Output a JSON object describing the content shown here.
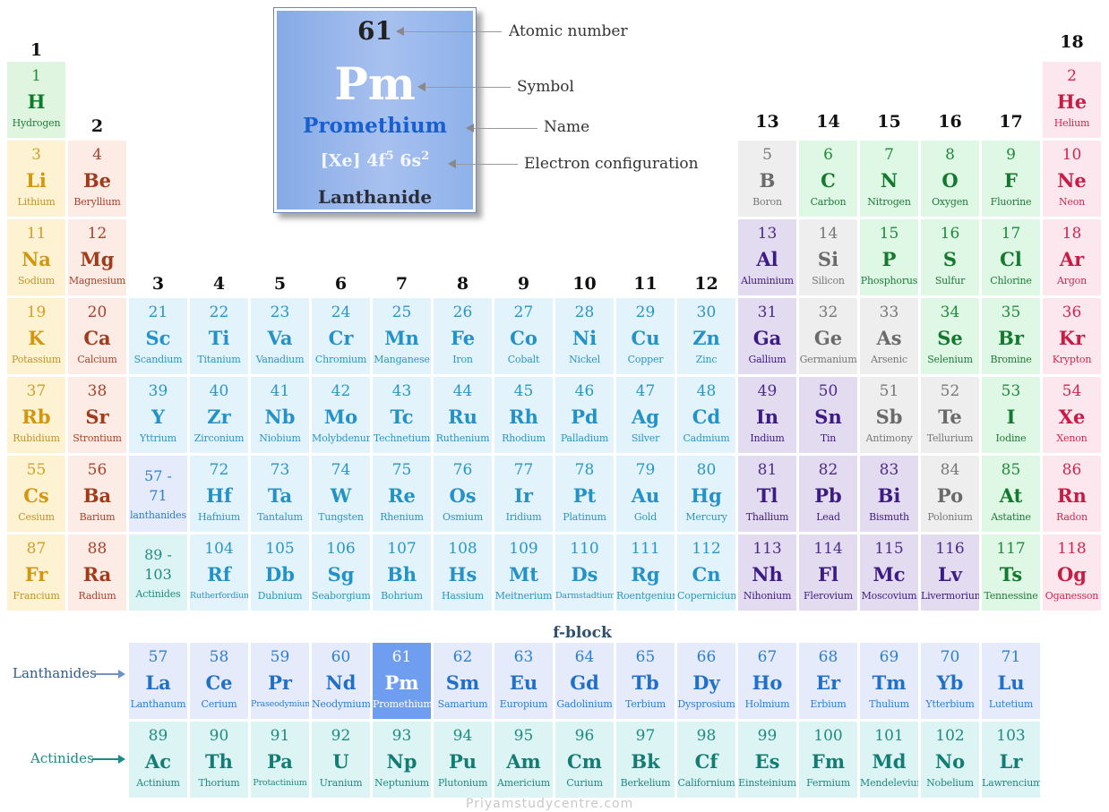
{
  "colors": {
    "hydrogen": "#e0f5df",
    "alkali": "#fdf3d3",
    "alkaline": "#fdebe5",
    "transition": "#e2f3fb",
    "post_transition": "#e3dbef",
    "metalloid": "#eeeeee",
    "nonmetal": "#dff7e5",
    "noble": "#fde7ee",
    "lanthanide": "#e6ebfc",
    "actinide": "#dcf4f3",
    "highlight": "#6f9df0"
  },
  "group_headers": [
    "1",
    "2",
    "3",
    "4",
    "5",
    "6",
    "7",
    "8",
    "9",
    "10",
    "11",
    "12",
    "13",
    "14",
    "15",
    "16",
    "17",
    "18"
  ],
  "legend": {
    "number": "61",
    "symbol": "Pm",
    "name": "Promethium",
    "config_base": "[Xe] 4f",
    "config_sup1": "5",
    "config_mid": " 6s",
    "config_sup2": "2",
    "category": "Lanthanide",
    "callouts": {
      "number": "Atomic number",
      "symbol": "Symbol",
      "name": "Name",
      "config": "Electron configuration"
    }
  },
  "labels": {
    "fblock": "f-block",
    "lanthanides": "Lanthanides",
    "actinides": "Actinides",
    "watermark": "Priyamstudycentre.com"
  },
  "elements": [
    {
      "n": "1",
      "s": "H",
      "name": "Hydrogen",
      "g": 1,
      "p": 1,
      "c": "hydrogen"
    },
    {
      "n": "2",
      "s": "He",
      "name": "Helium",
      "g": 18,
      "p": 1,
      "c": "noble"
    },
    {
      "n": "3",
      "s": "Li",
      "name": "Lithium",
      "g": 1,
      "p": 2,
      "c": "alkali"
    },
    {
      "n": "4",
      "s": "Be",
      "name": "Beryllium",
      "g": 2,
      "p": 2,
      "c": "alkaline"
    },
    {
      "n": "5",
      "s": "B",
      "name": "Boron",
      "g": 13,
      "p": 2,
      "c": "metalloid"
    },
    {
      "n": "6",
      "s": "C",
      "name": "Carbon",
      "g": 14,
      "p": 2,
      "c": "nonmetal"
    },
    {
      "n": "7",
      "s": "N",
      "name": "Nitrogen",
      "g": 15,
      "p": 2,
      "c": "nonmetal"
    },
    {
      "n": "8",
      "s": "O",
      "name": "Oxygen",
      "g": 16,
      "p": 2,
      "c": "nonmetal"
    },
    {
      "n": "9",
      "s": "F",
      "name": "Fluorine",
      "g": 17,
      "p": 2,
      "c": "nonmetal"
    },
    {
      "n": "10",
      "s": "Ne",
      "name": "Neon",
      "g": 18,
      "p": 2,
      "c": "noble"
    },
    {
      "n": "11",
      "s": "Na",
      "name": "Sodium",
      "g": 1,
      "p": 3,
      "c": "alkali"
    },
    {
      "n": "12",
      "s": "Mg",
      "name": "Magnesium",
      "g": 2,
      "p": 3,
      "c": "alkaline"
    },
    {
      "n": "13",
      "s": "Al",
      "name": "Aluminium",
      "g": 13,
      "p": 3,
      "c": "post_transition"
    },
    {
      "n": "14",
      "s": "Si",
      "name": "Silicon",
      "g": 14,
      "p": 3,
      "c": "metalloid"
    },
    {
      "n": "15",
      "s": "P",
      "name": "Phosphorus",
      "g": 15,
      "p": 3,
      "c": "nonmetal"
    },
    {
      "n": "16",
      "s": "S",
      "name": "Sulfur",
      "g": 16,
      "p": 3,
      "c": "nonmetal"
    },
    {
      "n": "17",
      "s": "Cl",
      "name": "Chlorine",
      "g": 17,
      "p": 3,
      "c": "nonmetal"
    },
    {
      "n": "18",
      "s": "Ar",
      "name": "Argon",
      "g": 18,
      "p": 3,
      "c": "noble"
    },
    {
      "n": "19",
      "s": "K",
      "name": "Potassium",
      "g": 1,
      "p": 4,
      "c": "alkali"
    },
    {
      "n": "20",
      "s": "Ca",
      "name": "Calcium",
      "g": 2,
      "p": 4,
      "c": "alkaline"
    },
    {
      "n": "21",
      "s": "Sc",
      "name": "Scandium",
      "g": 3,
      "p": 4,
      "c": "transition"
    },
    {
      "n": "22",
      "s": "Ti",
      "name": "Titanium",
      "g": 4,
      "p": 4,
      "c": "transition"
    },
    {
      "n": "23",
      "s": "Va",
      "name": "Vanadium",
      "g": 5,
      "p": 4,
      "c": "transition"
    },
    {
      "n": "24",
      "s": "Cr",
      "name": "Chromium",
      "g": 6,
      "p": 4,
      "c": "transition"
    },
    {
      "n": "25",
      "s": "Mn",
      "name": "Manganese",
      "g": 7,
      "p": 4,
      "c": "transition"
    },
    {
      "n": "26",
      "s": "Fe",
      "name": "Iron",
      "g": 8,
      "p": 4,
      "c": "transition"
    },
    {
      "n": "27",
      "s": "Co",
      "name": "Cobalt",
      "g": 9,
      "p": 4,
      "c": "transition"
    },
    {
      "n": "28",
      "s": "Ni",
      "name": "Nickel",
      "g": 10,
      "p": 4,
      "c": "transition"
    },
    {
      "n": "29",
      "s": "Cu",
      "name": "Copper",
      "g": 11,
      "p": 4,
      "c": "transition"
    },
    {
      "n": "30",
      "s": "Zn",
      "name": "Zinc",
      "g": 12,
      "p": 4,
      "c": "transition"
    },
    {
      "n": "31",
      "s": "Ga",
      "name": "Gallium",
      "g": 13,
      "p": 4,
      "c": "post_transition"
    },
    {
      "n": "32",
      "s": "Ge",
      "name": "Germanium",
      "g": 14,
      "p": 4,
      "c": "metalloid"
    },
    {
      "n": "33",
      "s": "As",
      "name": "Arsenic",
      "g": 15,
      "p": 4,
      "c": "metalloid"
    },
    {
      "n": "34",
      "s": "Se",
      "name": "Selenium",
      "g": 16,
      "p": 4,
      "c": "nonmetal"
    },
    {
      "n": "35",
      "s": "Br",
      "name": "Bromine",
      "g": 17,
      "p": 4,
      "c": "nonmetal"
    },
    {
      "n": "36",
      "s": "Kr",
      "name": "Krypton",
      "g": 18,
      "p": 4,
      "c": "noble"
    },
    {
      "n": "37",
      "s": "Rb",
      "name": "Rubidium",
      "g": 1,
      "p": 5,
      "c": "alkali"
    },
    {
      "n": "38",
      "s": "Sr",
      "name": "Strontium",
      "g": 2,
      "p": 5,
      "c": "alkaline"
    },
    {
      "n": "39",
      "s": "Y",
      "name": "Yttrium",
      "g": 3,
      "p": 5,
      "c": "transition"
    },
    {
      "n": "40",
      "s": "Zr",
      "name": "Zirconium",
      "g": 4,
      "p": 5,
      "c": "transition"
    },
    {
      "n": "41",
      "s": "Nb",
      "name": "Niobium",
      "g": 5,
      "p": 5,
      "c": "transition"
    },
    {
      "n": "42",
      "s": "Mo",
      "name": "Molybdenum",
      "g": 6,
      "p": 5,
      "c": "transition"
    },
    {
      "n": "43",
      "s": "Tc",
      "name": "Technetium",
      "g": 7,
      "p": 5,
      "c": "transition"
    },
    {
      "n": "44",
      "s": "Ru",
      "name": "Ruthenium",
      "g": 8,
      "p": 5,
      "c": "transition"
    },
    {
      "n": "45",
      "s": "Rh",
      "name": "Rhodium",
      "g": 9,
      "p": 5,
      "c": "transition"
    },
    {
      "n": "46",
      "s": "Pd",
      "name": "Palladium",
      "g": 10,
      "p": 5,
      "c": "transition"
    },
    {
      "n": "47",
      "s": "Ag",
      "name": "Silver",
      "g": 11,
      "p": 5,
      "c": "transition"
    },
    {
      "n": "48",
      "s": "Cd",
      "name": "Cadmium",
      "g": 12,
      "p": 5,
      "c": "transition"
    },
    {
      "n": "49",
      "s": "In",
      "name": "Indium",
      "g": 13,
      "p": 5,
      "c": "post_transition"
    },
    {
      "n": "50",
      "s": "Sn",
      "name": "Tin",
      "g": 14,
      "p": 5,
      "c": "post_transition"
    },
    {
      "n": "51",
      "s": "Sb",
      "name": "Antimony",
      "g": 15,
      "p": 5,
      "c": "metalloid"
    },
    {
      "n": "52",
      "s": "Te",
      "name": "Tellurium",
      "g": 16,
      "p": 5,
      "c": "metalloid"
    },
    {
      "n": "53",
      "s": "I",
      "name": "Iodine",
      "g": 17,
      "p": 5,
      "c": "nonmetal"
    },
    {
      "n": "54",
      "s": "Xe",
      "name": "Xenon",
      "g": 18,
      "p": 5,
      "c": "noble"
    },
    {
      "n": "55",
      "s": "Cs",
      "name": "Cesium",
      "g": 1,
      "p": 6,
      "c": "alkali"
    },
    {
      "n": "56",
      "s": "Ba",
      "name": "Barium",
      "g": 2,
      "p": 6,
      "c": "alkaline"
    },
    {
      "n": "57 -\n71",
      "s": "",
      "name": "lanthanides",
      "g": 3,
      "p": 6,
      "c": "lanthanide",
      "range": true
    },
    {
      "n": "72",
      "s": "Hf",
      "name": "Hafnium",
      "g": 4,
      "p": 6,
      "c": "transition"
    },
    {
      "n": "73",
      "s": "Ta",
      "name": "Tantalum",
      "g": 5,
      "p": 6,
      "c": "transition"
    },
    {
      "n": "74",
      "s": "W",
      "name": "Tungsten",
      "g": 6,
      "p": 6,
      "c": "transition"
    },
    {
      "n": "75",
      "s": "Re",
      "name": "Rhenium",
      "g": 7,
      "p": 6,
      "c": "transition"
    },
    {
      "n": "76",
      "s": "Os",
      "name": "Osmium",
      "g": 8,
      "p": 6,
      "c": "transition"
    },
    {
      "n": "77",
      "s": "Ir",
      "name": "Iridium",
      "g": 9,
      "p": 6,
      "c": "transition"
    },
    {
      "n": "78",
      "s": "Pt",
      "name": "Platinum",
      "g": 10,
      "p": 6,
      "c": "transition"
    },
    {
      "n": "79",
      "s": "Au",
      "name": "Gold",
      "g": 11,
      "p": 6,
      "c": "transition"
    },
    {
      "n": "80",
      "s": "Hg",
      "name": "Mercury",
      "g": 12,
      "p": 6,
      "c": "transition"
    },
    {
      "n": "81",
      "s": "Tl",
      "name": "Thallium",
      "g": 13,
      "p": 6,
      "c": "post_transition"
    },
    {
      "n": "82",
      "s": "Pb",
      "name": "Lead",
      "g": 14,
      "p": 6,
      "c": "post_transition"
    },
    {
      "n": "83",
      "s": "Bi",
      "name": "Bismuth",
      "g": 15,
      "p": 6,
      "c": "post_transition"
    },
    {
      "n": "84",
      "s": "Po",
      "name": "Polonium",
      "g": 16,
      "p": 6,
      "c": "metalloid"
    },
    {
      "n": "85",
      "s": "At",
      "name": "Astatine",
      "g": 17,
      "p": 6,
      "c": "nonmetal"
    },
    {
      "n": "86",
      "s": "Rn",
      "name": "Radon",
      "g": 18,
      "p": 6,
      "c": "noble"
    },
    {
      "n": "87",
      "s": "Fr",
      "name": "Francium",
      "g": 1,
      "p": 7,
      "c": "alkali"
    },
    {
      "n": "88",
      "s": "Ra",
      "name": "Radium",
      "g": 2,
      "p": 7,
      "c": "alkaline"
    },
    {
      "n": "89 -\n103",
      "s": "",
      "name": "Actinides",
      "g": 3,
      "p": 7,
      "c": "actinide",
      "range": true
    },
    {
      "n": "104",
      "s": "Rf",
      "name": "Rutherfordium",
      "g": 4,
      "p": 7,
      "c": "transition"
    },
    {
      "n": "105",
      "s": "Db",
      "name": "Dubnium",
      "g": 5,
      "p": 7,
      "c": "transition"
    },
    {
      "n": "106",
      "s": "Sg",
      "name": "Seaborgium",
      "g": 6,
      "p": 7,
      "c": "transition"
    },
    {
      "n": "107",
      "s": "Bh",
      "name": "Bohrium",
      "g": 7,
      "p": 7,
      "c": "transition"
    },
    {
      "n": "108",
      "s": "Hs",
      "name": "Hassium",
      "g": 8,
      "p": 7,
      "c": "transition"
    },
    {
      "n": "109",
      "s": "Mt",
      "name": "Meitnerium",
      "g": 9,
      "p": 7,
      "c": "transition"
    },
    {
      "n": "110",
      "s": "Ds",
      "name": "Darmstadtium",
      "g": 10,
      "p": 7,
      "c": "transition"
    },
    {
      "n": "111",
      "s": "Rg",
      "name": "Roentgenium",
      "g": 11,
      "p": 7,
      "c": "transition"
    },
    {
      "n": "112",
      "s": "Cn",
      "name": "Copernicium",
      "g": 12,
      "p": 7,
      "c": "transition"
    },
    {
      "n": "113",
      "s": "Nh",
      "name": "Nihonium",
      "g": 13,
      "p": 7,
      "c": "post_transition"
    },
    {
      "n": "114",
      "s": "Fl",
      "name": "Flerovium",
      "g": 14,
      "p": 7,
      "c": "post_transition"
    },
    {
      "n": "115",
      "s": "Mc",
      "name": "Moscovium",
      "g": 15,
      "p": 7,
      "c": "post_transition"
    },
    {
      "n": "116",
      "s": "Lv",
      "name": "Livermorium",
      "g": 16,
      "p": 7,
      "c": "post_transition"
    },
    {
      "n": "117",
      "s": "Ts",
      "name": "Tennessine",
      "g": 17,
      "p": 7,
      "c": "nonmetal"
    },
    {
      "n": "118",
      "s": "Og",
      "name": "Oganesson",
      "g": 18,
      "p": 7,
      "c": "noble"
    }
  ],
  "lanthanides": [
    {
      "n": "57",
      "s": "La",
      "name": "Lanthanum"
    },
    {
      "n": "58",
      "s": "Ce",
      "name": "Cerium"
    },
    {
      "n": "59",
      "s": "Pr",
      "name": "Praseodymium"
    },
    {
      "n": "60",
      "s": "Nd",
      "name": "Neodymium"
    },
    {
      "n": "61",
      "s": "Pm",
      "name": "Promethium",
      "hl": true
    },
    {
      "n": "62",
      "s": "Sm",
      "name": "Samarium"
    },
    {
      "n": "63",
      "s": "Eu",
      "name": "Europium"
    },
    {
      "n": "64",
      "s": "Gd",
      "name": "Gadolinium"
    },
    {
      "n": "65",
      "s": "Tb",
      "name": "Terbium"
    },
    {
      "n": "66",
      "s": "Dy",
      "name": "Dysprosium"
    },
    {
      "n": "67",
      "s": "Ho",
      "name": "Holmium"
    },
    {
      "n": "68",
      "s": "Er",
      "name": "Erbium"
    },
    {
      "n": "69",
      "s": "Tm",
      "name": "Thulium"
    },
    {
      "n": "70",
      "s": "Yb",
      "name": "Ytterbium"
    },
    {
      "n": "71",
      "s": "Lu",
      "name": "Lutetium"
    }
  ],
  "actinides": [
    {
      "n": "89",
      "s": "Ac",
      "name": "Actinium"
    },
    {
      "n": "90",
      "s": "Th",
      "name": "Thorium"
    },
    {
      "n": "91",
      "s": "Pa",
      "name": "Protactinium"
    },
    {
      "n": "92",
      "s": "U",
      "name": "Uranium"
    },
    {
      "n": "93",
      "s": "Np",
      "name": "Neptunium"
    },
    {
      "n": "94",
      "s": "Pu",
      "name": "Plutonium"
    },
    {
      "n": "95",
      "s": "Am",
      "name": "Americium"
    },
    {
      "n": "96",
      "s": "Cm",
      "name": "Curium"
    },
    {
      "n": "97",
      "s": "Bk",
      "name": "Berkelium"
    },
    {
      "n": "98",
      "s": "Cf",
      "name": "Californium"
    },
    {
      "n": "99",
      "s": "Es",
      "name": "Einsteinium"
    },
    {
      "n": "100",
      "s": "Fm",
      "name": "Fermium"
    },
    {
      "n": "101",
      "s": "Md",
      "name": "Mendelevium"
    },
    {
      "n": "102",
      "s": "No",
      "name": "Nobelium"
    },
    {
      "n": "103",
      "s": "Lr",
      "name": "Lawrencium"
    }
  ]
}
